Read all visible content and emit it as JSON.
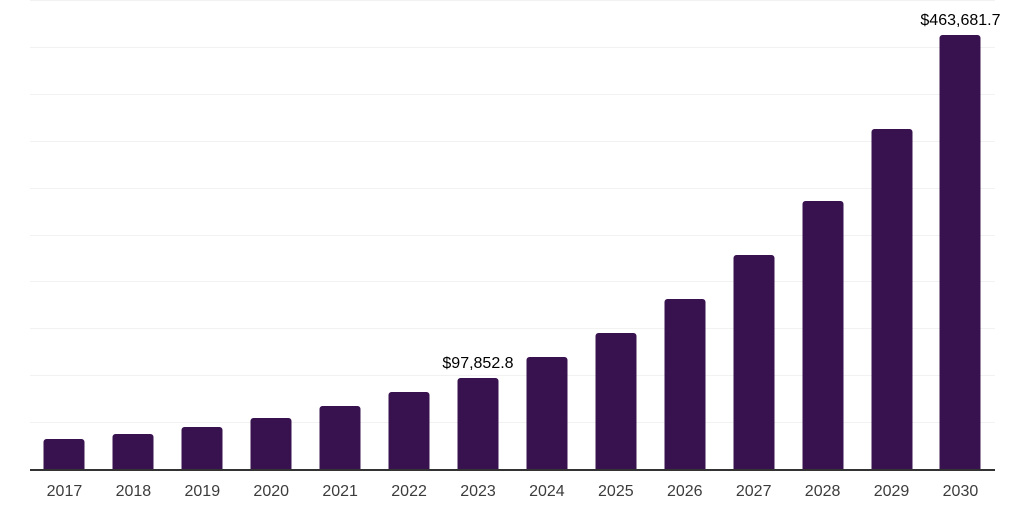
{
  "chart_data": {
    "type": "bar",
    "title": "",
    "xlabel": "",
    "ylabel": "",
    "categories": [
      "2017",
      "2018",
      "2019",
      "2020",
      "2021",
      "2022",
      "2023",
      "2024",
      "2025",
      "2026",
      "2027",
      "2028",
      "2029",
      "2030"
    ],
    "values": [
      33000,
      37900,
      45600,
      55600,
      68600,
      83000,
      97852.8,
      120000,
      146500,
      182000,
      229000,
      286500,
      363500,
      463681.7
    ],
    "data_labels": [
      "",
      "",
      "",
      "",
      "",
      "",
      "$97,852.8",
      "",
      "",
      "",
      "",
      "",
      "",
      "$463,681.7"
    ],
    "ylim": [
      0,
      500000
    ],
    "gridline_interval": 50000,
    "grid": "horizontal-only",
    "legend": "none",
    "y_tick_labels": "none",
    "colors": {
      "bar": "#38114f",
      "axis_line": "#333333",
      "gridline": "#f2f2f2",
      "data_label": "#000000",
      "x_tick_label": "#3c3c3c",
      "background": "#ffffff"
    }
  }
}
